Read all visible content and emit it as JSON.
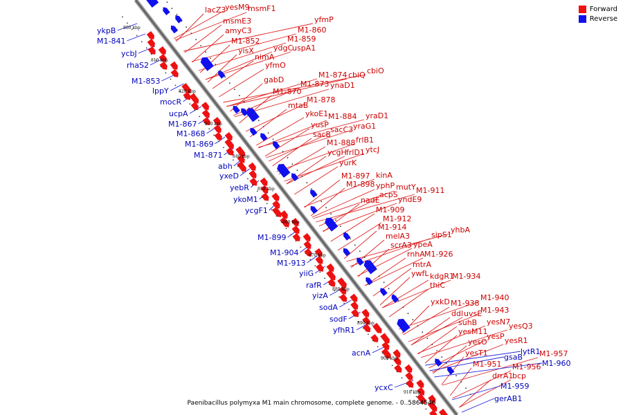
{
  "legend": {
    "forward_label": "Forward",
    "reverse_label": "Reverse",
    "forward_color": "#ee1111",
    "reverse_color": "#1111ee"
  },
  "caption": "Paenibacillus polymyxa M1 main chromosome, complete genome. - 0..5864546",
  "ticks": [
    "800 kbp",
    "810 kbp",
    "820 kbp",
    "830 kbp",
    "840 kbp",
    "850 kbp",
    "860 kbp",
    "870 kbp",
    "880 kbp",
    "890 kbp",
    "900 kbp",
    "910 kbp"
  ],
  "forward_labels": [
    "lacZ3",
    "yesM9",
    "msmF1",
    "msmE3",
    "amyC3",
    "M1-852",
    "yisX",
    "yfmP",
    "M1-860",
    "M1-859",
    "ydgC",
    "uspA1",
    "nimA",
    "yfmO",
    "gabD",
    "M1-874",
    "cbiQ",
    "cbiO",
    "M1-873",
    "ynaD1",
    "M1-870",
    "M1-878",
    "mtaB",
    "ykoE1",
    "M1-884",
    "yraD1",
    "yusP",
    "sacC3",
    "yraG1",
    "sacB",
    "frlB1",
    "M1-888",
    "ycgH",
    "frlD1",
    "ytcJ",
    "yurK",
    "M1-897",
    "kinA",
    "M1-898",
    "yphP",
    "mutY",
    "M1-911",
    "acpS",
    "nadE",
    "yndE9",
    "M1-909",
    "M1-912",
    "M1-914",
    "melA3",
    "sipS1",
    "yhbA",
    "scrA3",
    "ypeA",
    "rnhA",
    "M1-926",
    "mtrA",
    "ywfL",
    "kdgR1",
    "M1-934",
    "thiC",
    "yxkD",
    "M1-938",
    "M1-940",
    "ddl",
    "uvsE",
    "M1-943",
    "suhB",
    "yesN7",
    "yesM11",
    "yesQ3",
    "yesP",
    "yesO",
    "yesR1",
    "yesT1",
    "M1-951",
    "M1-957",
    "M1-956",
    "drrA1",
    "bcp"
  ],
  "reverse_labels": [
    "ykpB",
    "M1-841",
    "ycbJ",
    "rhaS2",
    "M1-853",
    "lppY",
    "mocR",
    "ucpA",
    "M1-867",
    "M1-868",
    "M1-869",
    "M1-871",
    "abh",
    "yxeD",
    "yebR",
    "ykoM1",
    "ycgF1",
    "M1-899",
    "M1-904",
    "M1-913",
    "yiiG",
    "rafR",
    "yizA",
    "sodA",
    "sodF",
    "yfhR1",
    "acnA",
    "ycxC",
    "lytR1",
    "M1-960",
    "gsaB",
    "M1-959",
    "gerAB1"
  ]
}
